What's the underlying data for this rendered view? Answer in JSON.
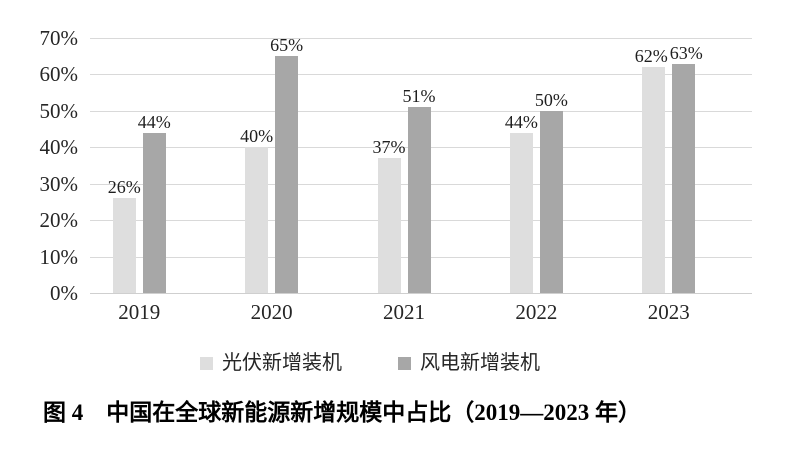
{
  "chart_data": {
    "type": "bar",
    "title": "",
    "categories": [
      "2019",
      "2020",
      "2021",
      "2022",
      "2023"
    ],
    "series": [
      {
        "key": "solar-pv",
        "name": "光伏新增装机",
        "color": "#dedede",
        "values": [
          26,
          40,
          37,
          44,
          62
        ]
      },
      {
        "key": "wind",
        "name": "风电新增装机",
        "color": "#a7a7a7",
        "values": [
          44,
          65,
          51,
          50,
          63
        ]
      }
    ],
    "data_labels": [
      "26%",
      "40%",
      "37%",
      "44%",
      "62%",
      "44%",
      "65%",
      "51%",
      "50%",
      "63%"
    ],
    "xlabel": "",
    "ylabel": "",
    "ylim": [
      0,
      70
    ],
    "yticks": [
      "0%",
      "10%",
      "20%",
      "30%",
      "40%",
      "50%",
      "60%",
      "70%"
    ],
    "grid": true,
    "legend_position": "bottom"
  },
  "caption": "图 4　中国在全球新能源新增规模中占比（2019—2023 年）",
  "colors": {
    "background": "#ffffff",
    "gridline": "#d9d9d9",
    "axis_line": "#cfcfcf",
    "tick_text": "#262626",
    "caption_text": "#000000",
    "series_solar": "#dedede",
    "series_wind": "#a7a7a7"
  }
}
